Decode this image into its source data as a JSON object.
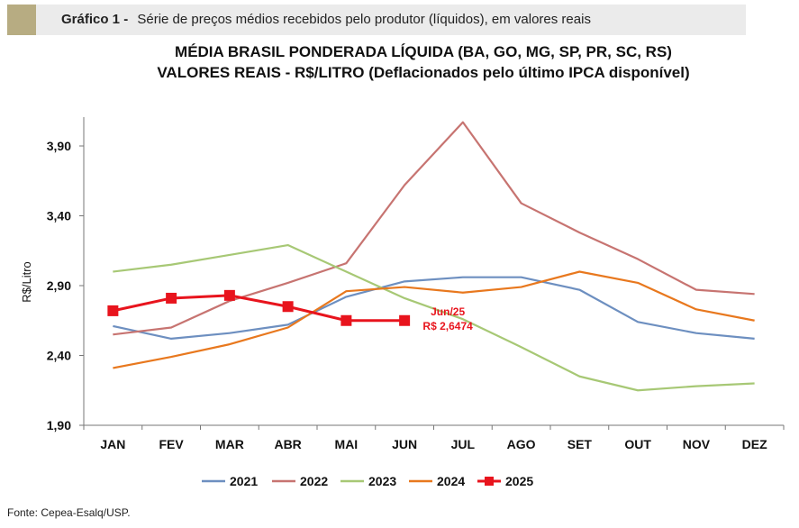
{
  "header": {
    "label": "Gráfico 1 -",
    "text": "Série de preços médios recebidos pelo produtor (líquidos), em valores reais"
  },
  "chart_data": {
    "type": "line",
    "title": "MÉDIA BRASIL PONDERADA LÍQUIDA (BA, GO, MG, SP, PR, SC, RS)",
    "subtitle": "VALORES REAIS - R$/LITRO (Deflacionados pelo último IPCA disponível)",
    "xlabel": "",
    "ylabel": "R$/Litro",
    "categories": [
      "JAN",
      "FEV",
      "MAR",
      "ABR",
      "MAI",
      "JUN",
      "JUL",
      "AGO",
      "SET",
      "OUT",
      "NOV",
      "DEZ"
    ],
    "yticks": [
      "3,90",
      "3,40",
      "2,90",
      "2,40",
      "1,90"
    ],
    "ylim": [
      1.9,
      4.1
    ],
    "grid": false,
    "legend_position": "bottom",
    "series": [
      {
        "name": "2021",
        "color": "#6d8fc0",
        "marker": "none",
        "values": [
          2.61,
          2.52,
          2.56,
          2.62,
          2.82,
          2.93,
          2.96,
          2.96,
          2.87,
          2.64,
          2.56,
          2.52
        ]
      },
      {
        "name": "2022",
        "color": "#c77471",
        "marker": "none",
        "values": [
          2.55,
          2.6,
          2.79,
          2.92,
          3.06,
          3.62,
          4.07,
          3.49,
          3.28,
          3.09,
          2.87,
          2.84
        ]
      },
      {
        "name": "2023",
        "color": "#a7c875",
        "marker": "none",
        "values": [
          3.0,
          3.05,
          3.12,
          3.19,
          3.0,
          2.81,
          2.66,
          2.46,
          2.25,
          2.15,
          2.18,
          2.2
        ]
      },
      {
        "name": "2024",
        "color": "#e8781e",
        "marker": "none",
        "values": [
          2.31,
          2.39,
          2.48,
          2.6,
          2.86,
          2.89,
          2.85,
          2.89,
          3.0,
          2.92,
          2.73,
          2.65
        ]
      },
      {
        "name": "2025",
        "color": "#e8141d",
        "marker": "square",
        "values": [
          2.72,
          2.81,
          2.83,
          2.75,
          2.65,
          2.65,
          null,
          null,
          null,
          null,
          null,
          null
        ]
      }
    ],
    "annotation": {
      "line1": "Jun/25",
      "line2": "R$ 2,6474",
      "color": "#e8141d"
    }
  },
  "source": "Fonte: Cepea-Esalq/USP."
}
